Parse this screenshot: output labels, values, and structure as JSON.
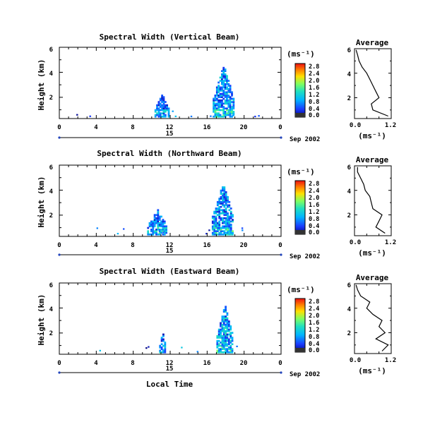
{
  "figure": {
    "panels": [
      {
        "title": "Spectral Width (Vertical Beam)",
        "ylabel": "Height (km)",
        "avg_title": "Average",
        "avg_xticks": [
          "0.0",
          "1.2"
        ],
        "colorbar_unit": "(ms⁻¹)",
        "avg_unit": "(ms⁻¹)"
      },
      {
        "title": "Spectral Width (Northward Beam)",
        "ylabel": "Height (km)",
        "avg_title": "Average",
        "avg_xticks": [
          "0.0",
          "1.2"
        ],
        "colorbar_unit": "(ms⁻¹)",
        "avg_unit": "(ms⁻¹)"
      },
      {
        "title": "Spectral Width (Eastward Beam)",
        "ylabel": "Height (km)",
        "avg_title": "Average",
        "avg_xticks": [
          "0.0",
          "1.2"
        ],
        "colorbar_unit": "(ms⁻¹)",
        "avg_unit": "(ms⁻¹)"
      }
    ],
    "xticks": [
      "0",
      "4",
      "8",
      "12",
      "16",
      "20",
      "0"
    ],
    "date_day": "15",
    "date_month": "Sep 2002",
    "xlabel": "Local Time",
    "colorbar_ticks": [
      "0.0",
      "0.4",
      "0.8",
      "1.2",
      "1.6",
      "2.0",
      "2.4",
      "2.8"
    ],
    "yticks": [
      "2",
      "4",
      "6"
    ]
  },
  "chart_data": [
    {
      "type": "heatmap",
      "title": "Spectral Width (Vertical Beam)",
      "ylabel": "Height (km)",
      "xlim_hours": [
        0,
        24
      ],
      "ylim_km": [
        0.3,
        6
      ],
      "colorbar": {
        "label": "(ms⁻¹)",
        "range": [
          0,
          3.0
        ],
        "ticks": [
          0,
          0.4,
          0.8,
          1.2,
          1.6,
          2.0,
          2.4,
          2.8
        ]
      },
      "clusters": [
        {
          "t_start": 10.3,
          "t_end": 11.8,
          "h_bottom": 0.4,
          "h_top": 2.2,
          "typical_width": 0.6
        },
        {
          "t_start": 16.6,
          "t_end": 18.8,
          "h_bottom": 0.4,
          "h_top": 4.6,
          "typical_width": 0.8
        }
      ],
      "average_profile": {
        "title": "Average",
        "xlabel": "(ms⁻¹)",
        "xlim": [
          0.0,
          1.2
        ],
        "ylim": [
          0.3,
          6
        ],
        "height": [
          0.5,
          1.0,
          1.5,
          2.0,
          2.5,
          3.0,
          3.5,
          4.0,
          4.5,
          5.0,
          5.5,
          5.9
        ],
        "width": [
          1.1,
          0.6,
          0.55,
          0.8,
          0.7,
          0.6,
          0.5,
          0.4,
          0.25,
          0.15,
          0.1,
          0.05
        ]
      }
    },
    {
      "type": "heatmap",
      "title": "Spectral Width (Northward Beam)",
      "ylabel": "Height (km)",
      "xlim_hours": [
        0,
        24
      ],
      "ylim_km": [
        0.3,
        6
      ],
      "colorbar": {
        "label": "(ms⁻¹)",
        "range": [
          0,
          3.0
        ],
        "ticks": [
          0,
          0.4,
          0.8,
          1.2,
          1.6,
          2.0,
          2.4,
          2.8
        ]
      },
      "clusters": [
        {
          "t_start": 9.5,
          "t_end": 11.6,
          "h_bottom": 0.4,
          "h_top": 2.4,
          "typical_width": 0.7
        },
        {
          "t_start": 16.5,
          "t_end": 18.8,
          "h_bottom": 0.4,
          "h_top": 4.5,
          "typical_width": 0.8
        }
      ],
      "average_profile": {
        "title": "Average",
        "xlabel": "(ms⁻¹)",
        "xlim": [
          0.0,
          1.2
        ],
        "ylim": [
          0.3,
          6
        ],
        "height": [
          0.5,
          1.0,
          1.5,
          2.0,
          2.5,
          3.0,
          3.5,
          4.0,
          4.5,
          5.0,
          5.5,
          5.9
        ],
        "width": [
          1.0,
          0.7,
          0.8,
          0.9,
          0.6,
          0.55,
          0.5,
          0.35,
          0.3,
          0.2,
          0.1,
          0.1
        ]
      }
    },
    {
      "type": "heatmap",
      "title": "Spectral Width (Eastward Beam)",
      "ylabel": "Height (km)",
      "xlim_hours": [
        0,
        24
      ],
      "ylim_km": [
        0.3,
        6
      ],
      "colorbar": {
        "label": "(ms⁻¹)",
        "range": [
          0,
          3.0
        ],
        "ticks": [
          0,
          0.4,
          0.8,
          1.2,
          1.6,
          2.0,
          2.4,
          2.8
        ]
      },
      "clusters": [
        {
          "t_start": 10.8,
          "t_end": 11.4,
          "h_bottom": 0.4,
          "h_top": 2.1,
          "typical_width": 0.6
        },
        {
          "t_start": 17.0,
          "t_end": 18.7,
          "h_bottom": 0.4,
          "h_top": 4.3,
          "typical_width": 0.9
        }
      ],
      "average_profile": {
        "title": "Average",
        "xlabel": "(ms⁻¹)",
        "xlim": [
          0.0,
          1.2
        ],
        "ylim": [
          0.3,
          6
        ],
        "height": [
          0.5,
          1.0,
          1.5,
          2.0,
          2.5,
          3.0,
          3.5,
          4.0,
          4.5,
          5.0,
          5.5,
          5.9
        ],
        "width": [
          0.9,
          1.1,
          0.7,
          1.0,
          0.8,
          0.9,
          0.6,
          0.4,
          0.5,
          0.2,
          0.1,
          0.05
        ]
      }
    }
  ]
}
